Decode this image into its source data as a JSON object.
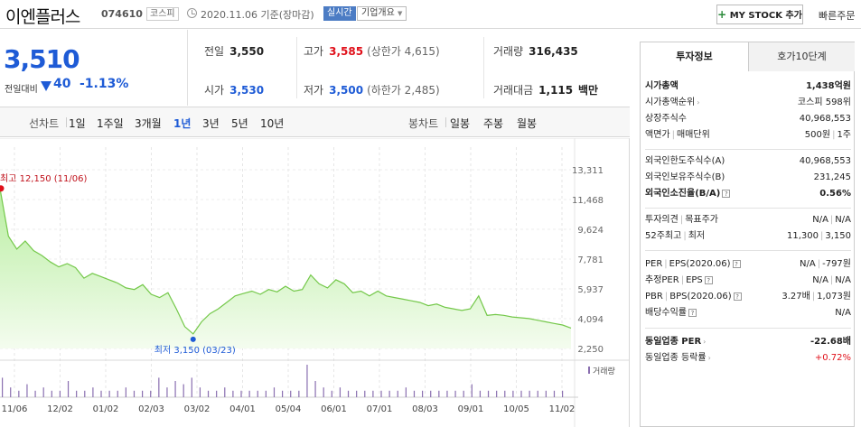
{
  "header": {
    "name": "이엔플러스",
    "code": "074610",
    "market": "코스피",
    "date": "2020.11.06 기준(장마감)",
    "realtime": "실시간",
    "company_info": "기업개요",
    "mystock_plus": "+",
    "mystock": "MY STOCK 추가",
    "quick_order": "빠른주문"
  },
  "price": {
    "now": "3,510",
    "compare_label": "전일대비",
    "change": "40",
    "rate": "-1.13%",
    "direction": "down"
  },
  "quote": {
    "prev_label": "전일",
    "prev": "3,550",
    "high_label": "고가",
    "high": "3,585",
    "high_sub": "(상한가 4,615)",
    "volume_label": "거래량",
    "volume": "316,435",
    "open_label": "시가",
    "open": "3,530",
    "low_label": "저가",
    "low": "3,500",
    "low_sub": "(하한가 2,485)",
    "amount_label": "거래대금",
    "amount": "1,115",
    "amount_unit": "백만"
  },
  "chart_tabs": {
    "line_label": "선차트",
    "periods": [
      "1일",
      "1주일",
      "3개월",
      "1년",
      "3년",
      "5년",
      "10년"
    ],
    "selected_period": "1년",
    "candle_label": "봉차트",
    "candles": [
      "일봉",
      "주봉",
      "월봉"
    ]
  },
  "chart_data": {
    "type": "area",
    "y_ticks": [
      "13,311",
      "11,468",
      "9,624",
      "7,781",
      "5,937",
      "4,094",
      "2,250"
    ],
    "ylim": [
      2250,
      13311
    ],
    "x_ticks": [
      "11/06",
      "12/02",
      "01/02",
      "02/03",
      "03/02",
      "04/01",
      "05/04",
      "06/01",
      "07/01",
      "08/03",
      "09/01",
      "10/05",
      "11/02"
    ],
    "high_label": "최고 12,150 (11/06)",
    "low_label": "최저 3,150 (03/23)",
    "volume_legend": "거래량",
    "series": [
      {
        "values": [
          12150,
          9200,
          8400,
          8900,
          8300,
          8000,
          7600,
          7300,
          7500,
          7250,
          6600,
          6900,
          6700,
          6500,
          6300,
          6000,
          5900,
          6200,
          5600,
          5400,
          5700,
          4700,
          3600,
          3150,
          3900,
          4400,
          4700,
          5100,
          5500,
          5650,
          5800,
          5600,
          5900,
          5750,
          6100,
          5800,
          5900,
          6800,
          6250,
          6000,
          6500,
          6250,
          5700,
          5800,
          5500,
          5800,
          5500,
          5400,
          5300,
          5200,
          5100,
          4900,
          5000,
          4800,
          4700,
          4600,
          4700,
          5500,
          4300,
          4350,
          4300,
          4200,
          4150,
          4100,
          4000,
          3900,
          3800,
          3700,
          3510
        ]
      }
    ],
    "volume": [
      6,
      3,
      2,
      4,
      2,
      3,
      2,
      2,
      5,
      2,
      2,
      3,
      2,
      2,
      2,
      3,
      2,
      2,
      2,
      6,
      3,
      5,
      4,
      6,
      3,
      2,
      2,
      3,
      2,
      2,
      2,
      2,
      2,
      3,
      2,
      2,
      2,
      10,
      5,
      3,
      2,
      3,
      2,
      2,
      2,
      2,
      2,
      2,
      2,
      3,
      2,
      2,
      2,
      2,
      2,
      2,
      2,
      4,
      2,
      2,
      2,
      2,
      2,
      2,
      2,
      2,
      2,
      2,
      2
    ]
  },
  "panel": {
    "tab_invest": "투자정보",
    "tab_hoga": "호가10단계",
    "market_cap_label": "시가총액",
    "market_cap": "1,438억원",
    "market_cap_rank_label": "시가총액순위",
    "market_cap_rank": "코스피 598위",
    "shares_label": "상장주식수",
    "shares": "40,968,553",
    "par_label": "액면가",
    "unit_label": "매매단위",
    "par": "500원",
    "unit": "1주",
    "foreign_limit_label": "외국인한도주식수(A)",
    "foreign_limit": "40,968,553",
    "foreign_hold_label": "외국인보유주식수(B)",
    "foreign_hold": "231,245",
    "foreign_ratio_label": "외국인소진율(B/A)",
    "foreign_ratio": "0.56%",
    "opinion_label": "투자의견",
    "target_label": "목표주가",
    "opinion": "N/A",
    "target": "N/A",
    "w52_label": "52주최고",
    "w52_low_label": "최저",
    "w52_high": "11,300",
    "w52_low": "3,150",
    "per_label": "PER",
    "eps_label": "EPS(2020.06)",
    "per": "N/A",
    "eps": "-797원",
    "est_per_label": "추정PER",
    "est_eps_label": "EPS",
    "est_per": "N/A",
    "est_eps": "N/A",
    "pbr_label": "PBR",
    "bps_label": "BPS(2020.06)",
    "pbr": "3.27배",
    "bps": "1,073원",
    "div_label": "배당수익률",
    "div": "N/A",
    "ind_per_label": "동일업종 PER",
    "ind_per": "-22.68배",
    "ind_rate_label": "동일업종 등락률",
    "ind_rate": "+0.72%",
    "q": "?"
  }
}
